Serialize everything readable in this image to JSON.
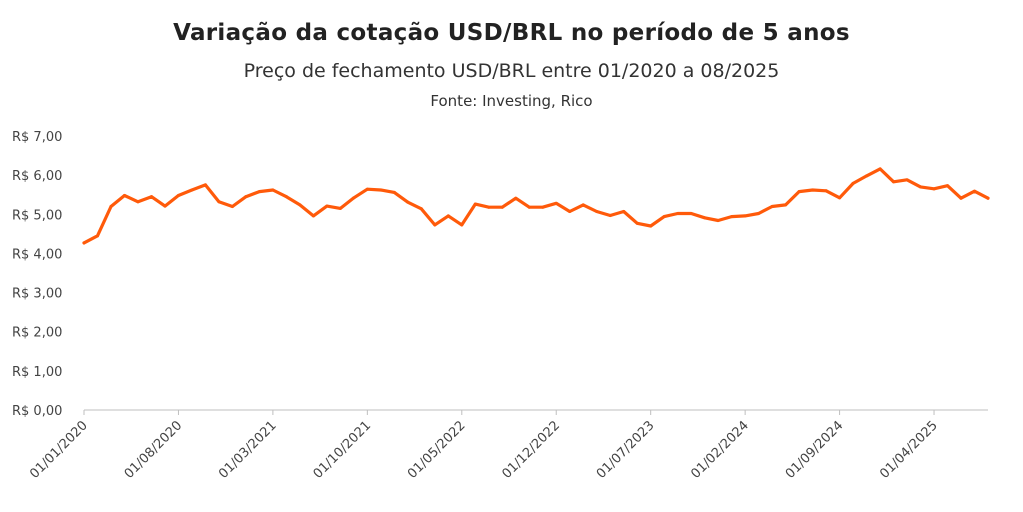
{
  "chart_data": {
    "type": "line",
    "title": "Variação da cotação USD/BRL no período de 5 anos",
    "subtitle": "Preço de fechamento USD/BRL entre 01/2020 a 08/2025",
    "source": "Fonte: Investing, Rico",
    "xlabel": "",
    "ylabel": "",
    "ylim": [
      0,
      7
    ],
    "y_ticks": [
      "R$ 0,00",
      "R$ 1,00",
      "R$ 2,00",
      "R$ 3,00",
      "R$ 4,00",
      "R$ 5,00",
      "R$ 6,00",
      "R$ 7,00"
    ],
    "x_ticks": [
      "01/01/2020",
      "01/08/2020",
      "01/03/2021",
      "01/10/2021",
      "01/05/2022",
      "01/12/2022",
      "01/07/2023",
      "01/02/2024",
      "01/09/2024",
      "01/04/2025"
    ],
    "x_tick_every_months": 7,
    "x_start": "01/2020",
    "x_end": "08/2025",
    "grid": false,
    "series": [
      {
        "name": "USD/BRL",
        "color": "#FF5A0A",
        "values": [
          4.27,
          4.45,
          5.2,
          5.48,
          5.32,
          5.45,
          5.21,
          5.48,
          5.62,
          5.75,
          5.32,
          5.2,
          5.45,
          5.58,
          5.62,
          5.45,
          5.24,
          4.96,
          5.21,
          5.15,
          5.42,
          5.64,
          5.62,
          5.56,
          5.31,
          5.14,
          4.73,
          4.96,
          4.73,
          5.26,
          5.18,
          5.18,
          5.41,
          5.18,
          5.18,
          5.28,
          5.07,
          5.24,
          5.07,
          4.97,
          5.07,
          4.77,
          4.7,
          4.94,
          5.02,
          5.02,
          4.91,
          4.84,
          4.94,
          4.96,
          5.02,
          5.2,
          5.24,
          5.58,
          5.62,
          5.6,
          5.42,
          5.79,
          5.98,
          6.16,
          5.83,
          5.88,
          5.7,
          5.65,
          5.73,
          5.41,
          5.59,
          5.41
        ]
      }
    ]
  }
}
